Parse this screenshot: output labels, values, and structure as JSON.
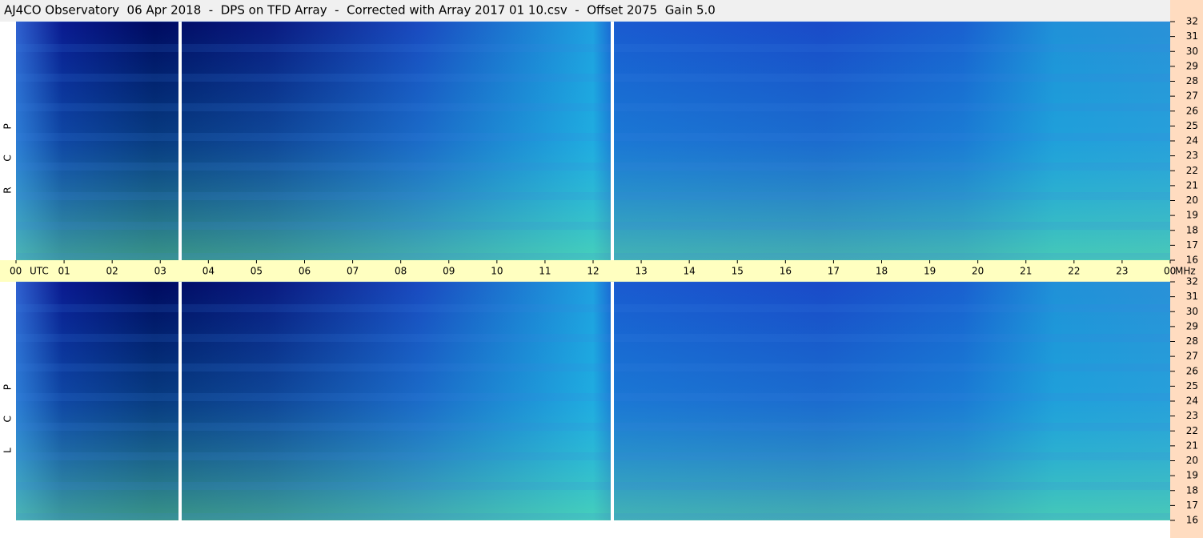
{
  "chart_data": {
    "type": "spectrogram",
    "title": "AJ4CO Observatory  06 Apr 2018  -  DPS on TFD Array  -  Corrected with Array 2017 01 10.csv  -  Offset 2075  Gain 5.0",
    "x_label": "UTC",
    "y_label": "MHz",
    "xlim": [
      0,
      24
    ],
    "xticks": [
      {
        "value": 0,
        "label": "00"
      },
      {
        "value": 1,
        "label": "01"
      },
      {
        "value": 2,
        "label": "02"
      },
      {
        "value": 3,
        "label": "03"
      },
      {
        "value": 4,
        "label": "04"
      },
      {
        "value": 5,
        "label": "05"
      },
      {
        "value": 6,
        "label": "06"
      },
      {
        "value": 7,
        "label": "07"
      },
      {
        "value": 8,
        "label": "08"
      },
      {
        "value": 9,
        "label": "09"
      },
      10,
      11,
      12,
      13,
      14,
      15,
      16,
      17,
      18,
      19,
      20,
      21,
      22,
      23,
      {
        "value": 24,
        "label": "00"
      }
    ],
    "ylim": [
      16,
      32
    ],
    "yticks": [
      16,
      17,
      18,
      19,
      20,
      21,
      22,
      23,
      24,
      25,
      26,
      27,
      28,
      29,
      30,
      31,
      32
    ],
    "panels": [
      {
        "name": "R C P"
      },
      {
        "name": "L C P"
      }
    ]
  }
}
